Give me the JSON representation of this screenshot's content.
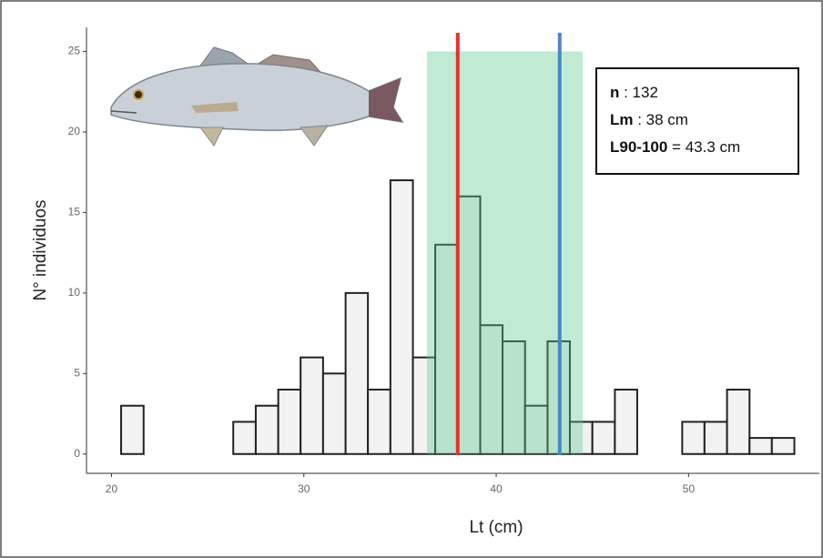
{
  "chart_data": {
    "type": "histogram",
    "x_label": "Lt (cm)",
    "y_label": "N° individuos",
    "bins": [
      20.5,
      21.67,
      22.83,
      24,
      25.17,
      26.33,
      27.5,
      28.67,
      29.83,
      31,
      32.17,
      33.33,
      34.5,
      35.67,
      36.83,
      38,
      39.17,
      40.33,
      41.5,
      42.67,
      43.83,
      45,
      46.17,
      47.33,
      48.5,
      49.67,
      50.83,
      52,
      53.17,
      54.33,
      55.5
    ],
    "values": [
      3,
      0,
      0,
      0,
      0,
      2,
      3,
      4,
      6,
      5,
      10,
      4,
      17,
      6,
      13,
      16,
      8,
      7,
      3,
      7,
      2,
      2,
      4,
      0,
      0,
      2,
      2,
      4,
      1,
      1
    ],
    "color": "#f2f2f2",
    "edge_color": "#222222",
    "xlim": [
      18.7,
      56.8
    ],
    "xticks": [
      20,
      30,
      40,
      50
    ],
    "ylim": [
      -1.2,
      26.5
    ],
    "yticks": [
      0,
      5,
      10,
      15,
      20,
      25
    ],
    "vlines": [
      {
        "value": 38,
        "color": "#e8312a"
      },
      {
        "value": 43.3,
        "color": "#4a86c5"
      }
    ],
    "shaded_region": {
      "xmin": 36.4,
      "xmax": 44.5,
      "ymin": 0,
      "ymax": 25,
      "color": "rgba(90,200,140,0.38)"
    },
    "annotation": [
      {
        "key": "n",
        "text": " : 132"
      },
      {
        "key": "Lm",
        "text": " : 38 cm"
      },
      {
        "key": "L90-100",
        "text": " = 43.3 cm"
      }
    ]
  }
}
